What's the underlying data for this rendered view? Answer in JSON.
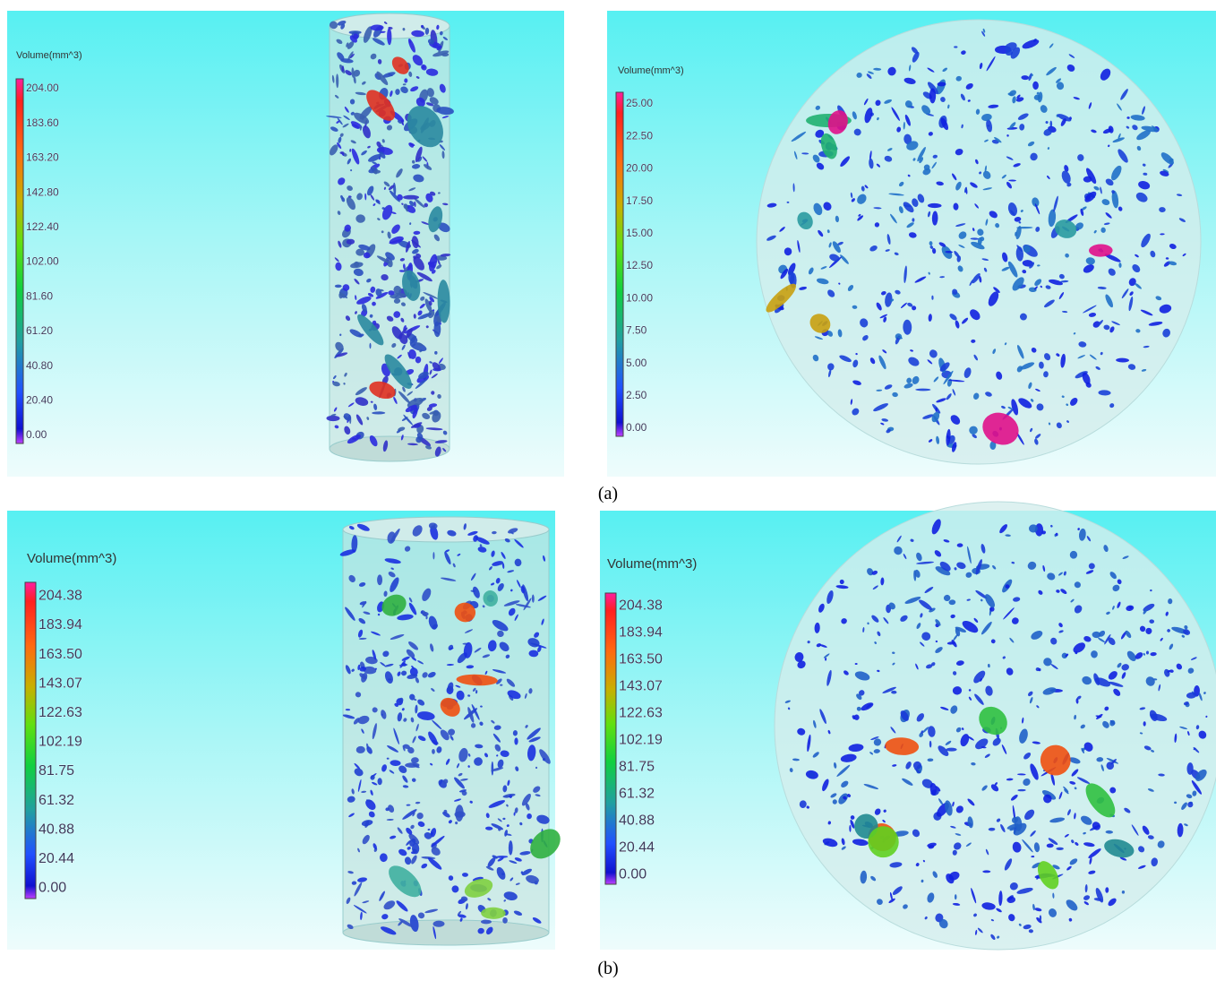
{
  "panels": [
    {
      "legend_title": "Volume(mm^3)",
      "ticks": [
        "204.00",
        "183.60",
        "163.20",
        "142.80",
        "122.40",
        "102.00",
        "81.60",
        "61.20",
        "40.80",
        "20.40",
        "0.00"
      ]
    },
    {
      "legend_title": "Volume(mm^3)",
      "ticks": [
        "25.00",
        "22.50",
        "20.00",
        "17.50",
        "15.00",
        "12.50",
        "10.00",
        "7.50",
        "5.00",
        "2.50",
        "0.00"
      ]
    },
    {
      "legend_title": "Volume(mm^3)",
      "ticks": [
        "204.38",
        "183.94",
        "163.50",
        "143.07",
        "122.63",
        "102.19",
        "81.75",
        "61.32",
        "40.88",
        "20.44",
        "0.00"
      ]
    },
    {
      "legend_title": "Volume(mm^3)",
      "ticks": [
        "204.38",
        "183.94",
        "163.50",
        "143.07",
        "122.63",
        "102.19",
        "81.75",
        "61.32",
        "40.88",
        "20.44",
        "0.00"
      ]
    }
  ],
  "captions": [
    "(a)",
    "(b)"
  ]
}
